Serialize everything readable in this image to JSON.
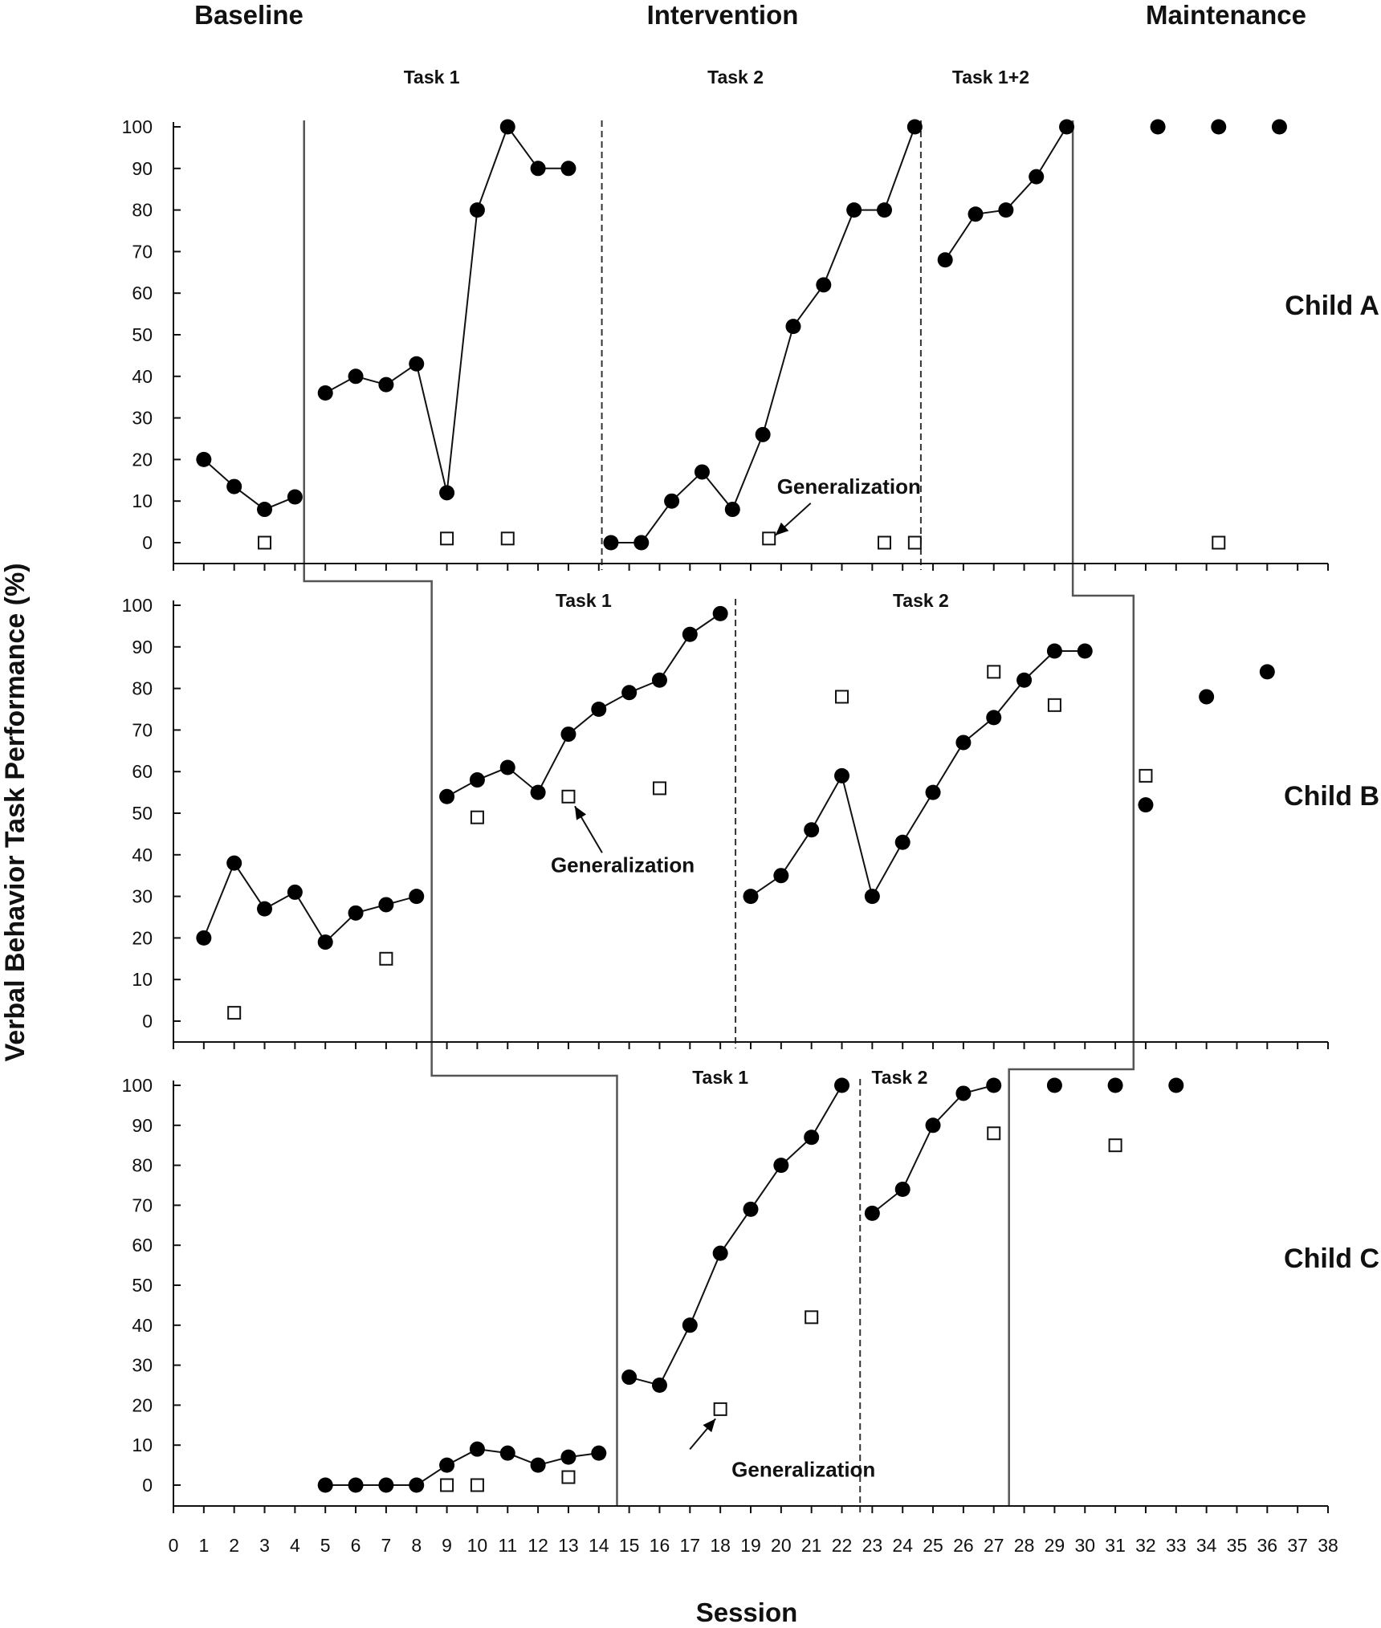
{
  "chart_data": {
    "type": "scatter",
    "title": "",
    "ylabel": "Verbal Behavior Task Performance (%)",
    "xlabel": "Session",
    "x_ticks": [
      0,
      1,
      2,
      3,
      4,
      5,
      6,
      7,
      8,
      9,
      10,
      11,
      12,
      13,
      14,
      15,
      16,
      17,
      18,
      19,
      20,
      21,
      22,
      23,
      24,
      25,
      26,
      27,
      28,
      29,
      30,
      31,
      32,
      33,
      34,
      35,
      36,
      37,
      38
    ],
    "y_ticks": [
      0,
      10,
      20,
      30,
      40,
      50,
      60,
      70,
      80,
      90,
      100
    ],
    "xlim": [
      0,
      38
    ],
    "ylim": [
      0,
      100
    ],
    "phases": [
      "Baseline",
      "Intervention",
      "Maintenance"
    ],
    "annotation": "Generalization",
    "panels": [
      {
        "label": "Child  A",
        "tasks": [
          "Task  1",
          "Task  2",
          "Task  1+2"
        ],
        "task_label_x": [
          8.5,
          18.5,
          26.9
        ],
        "phase_change_x": [
          4.3,
          29.6
        ],
        "task_change_x": [
          14.1,
          24.6
        ],
        "trained": [
          {
            "x": [
              1,
              2,
              3,
              4
            ],
            "y": [
              20,
              13.5,
              8,
              11
            ]
          },
          {
            "x": [
              5,
              6,
              7,
              8,
              9,
              10,
              11,
              12,
              13
            ],
            "y": [
              36,
              40,
              38,
              43,
              12,
              80,
              100,
              90,
              90
            ]
          },
          {
            "x": [
              14.4,
              15.4,
              16.4,
              17.4,
              18.4,
              19.4,
              20.4,
              21.4,
              22.4,
              23.4,
              24.4
            ],
            "y": [
              0,
              0,
              10,
              17,
              8,
              26,
              52,
              62,
              80,
              80,
              100
            ]
          },
          {
            "x": [
              25.4,
              26.4,
              27.4,
              28.4,
              29.4
            ],
            "y": [
              68,
              79,
              80,
              88,
              100
            ]
          },
          {
            "x": [
              32.4
            ],
            "y": [
              100
            ]
          },
          {
            "x": [
              34.4
            ],
            "y": [
              100
            ]
          },
          {
            "x": [
              36.4
            ],
            "y": [
              100
            ]
          }
        ],
        "generalization": {
          "x": [
            3,
            9,
            11,
            19.6,
            23.4,
            24.4,
            34.4
          ],
          "y": [
            0,
            1,
            1,
            1,
            0,
            0,
            0
          ]
        },
        "annotation_target": {
          "x": 19.6,
          "y": 1
        }
      },
      {
        "label": "Child  B",
        "tasks": [
          "Task  1",
          "Task  2"
        ],
        "task_label_x": [
          13.5,
          24.6
        ],
        "phase_change_x": [
          8.5,
          31.6
        ],
        "task_change_x": [
          18.5
        ],
        "trained": [
          {
            "x": [
              1,
              2,
              3,
              4,
              5,
              6,
              7,
              8
            ],
            "y": [
              20,
              38,
              27,
              31,
              19,
              26,
              28,
              30
            ]
          },
          {
            "x": [
              9,
              10,
              11,
              12,
              13,
              14,
              15,
              16,
              17,
              18
            ],
            "y": [
              54,
              58,
              61,
              55,
              69,
              75,
              79,
              82,
              93,
              98
            ]
          },
          {
            "x": [
              19,
              20,
              21,
              22,
              23,
              24,
              25,
              26,
              27,
              28,
              29,
              30
            ],
            "y": [
              30,
              35,
              46,
              59,
              30,
              43,
              55,
              67,
              73,
              82,
              89,
              89
            ]
          },
          {
            "x": [
              32
            ],
            "y": [
              52
            ]
          },
          {
            "x": [
              34
            ],
            "y": [
              78
            ]
          },
          {
            "x": [
              36
            ],
            "y": [
              84
            ]
          }
        ],
        "generalization": {
          "x": [
            2,
            7,
            10,
            13,
            16,
            22,
            27,
            29,
            32
          ],
          "y": [
            2,
            15,
            49,
            54,
            56,
            78,
            84,
            76,
            59
          ]
        },
        "annotation_target": {
          "x": 13,
          "y": 54
        }
      },
      {
        "label": "Child  C",
        "tasks": [
          "Task  1",
          "Task  2"
        ],
        "task_label_x": [
          18.0,
          23.9
        ],
        "phase_change_x": [
          14.6,
          27.5
        ],
        "task_change_x": [
          22.6
        ],
        "trained": [
          {
            "x": [
              5,
              6,
              7,
              8,
              9,
              10,
              11,
              12,
              13,
              14
            ],
            "y": [
              0,
              0,
              0,
              0,
              5,
              9,
              8,
              5,
              7,
              8
            ]
          },
          {
            "x": [
              15,
              16,
              17,
              18,
              19,
              20,
              21,
              22
            ],
            "y": [
              27,
              25,
              40,
              58,
              69,
              80,
              87,
              100
            ]
          },
          {
            "x": [
              23,
              24,
              25,
              26,
              27
            ],
            "y": [
              68,
              74,
              90,
              98,
              100
            ]
          },
          {
            "x": [
              29
            ],
            "y": [
              100
            ]
          },
          {
            "x": [
              31
            ],
            "y": [
              100
            ]
          },
          {
            "x": [
              33
            ],
            "y": [
              100
            ]
          }
        ],
        "generalization": {
          "x": [
            9,
            10,
            13,
            18,
            21,
            27,
            31
          ],
          "y": [
            0,
            0,
            2,
            19,
            42,
            88,
            85
          ]
        },
        "annotation_target": {
          "x": 18,
          "y": 19
        }
      }
    ]
  }
}
